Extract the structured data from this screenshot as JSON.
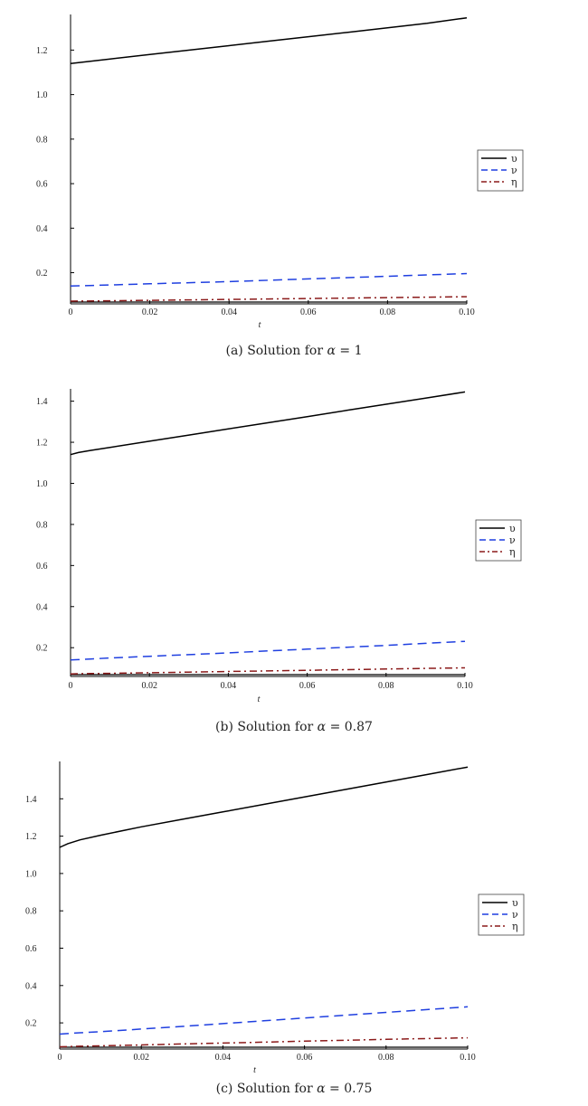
{
  "chart_data": [
    {
      "type": "line",
      "xlabel": "t",
      "ylabel": "",
      "xlim": [
        0,
        0.1
      ],
      "ylim": [
        0.06,
        1.36
      ],
      "xticks": [
        "0",
        "0.02",
        "0.04",
        "0.06",
        "0.08",
        "0.10"
      ],
      "xtick_values": [
        0,
        0.02,
        0.04,
        0.06,
        0.08,
        0.1
      ],
      "yticks": [
        "0.2",
        "0.4",
        "0.6",
        "0.8",
        "1.0",
        "1.2"
      ],
      "ytick_values": [
        0.2,
        0.4,
        0.6,
        0.8,
        1.0,
        1.2
      ],
      "grid": false,
      "legend": "right",
      "x": [
        0,
        0.01,
        0.02,
        0.03,
        0.04,
        0.05,
        0.06,
        0.07,
        0.08,
        0.09,
        0.1
      ],
      "series": [
        {
          "name": "υ",
          "color": "#000000",
          "dash": "solid",
          "values": [
            1.14,
            1.16,
            1.18,
            1.2,
            1.22,
            1.24,
            1.26,
            1.28,
            1.3,
            1.32,
            1.345
          ]
        },
        {
          "name": "ν",
          "color": "#1f3fe0",
          "dash": "dashed",
          "values": [
            0.14,
            0.145,
            0.15,
            0.155,
            0.16,
            0.166,
            0.172,
            0.178,
            0.184,
            0.19,
            0.196
          ]
        },
        {
          "name": "η",
          "color": "#8b1a1a",
          "dash": "dashdot",
          "values": [
            0.072,
            0.074,
            0.076,
            0.078,
            0.08,
            0.082,
            0.084,
            0.086,
            0.088,
            0.09,
            0.092
          ]
        }
      ],
      "baseline": {
        "color": "#000000",
        "value": 0.06
      }
    },
    {
      "type": "line",
      "xlabel": "t",
      "ylabel": "",
      "xlim": [
        0,
        0.1
      ],
      "ylim": [
        0.06,
        1.46
      ],
      "xticks": [
        "0",
        "0.02",
        "0.04",
        "0.06",
        "0.08",
        "0.10"
      ],
      "xtick_values": [
        0,
        0.02,
        0.04,
        0.06,
        0.08,
        0.1
      ],
      "yticks": [
        "0.2",
        "0.4",
        "0.6",
        "0.8",
        "1.0",
        "1.2",
        "1.4"
      ],
      "ytick_values": [
        0.2,
        0.4,
        0.6,
        0.8,
        1.0,
        1.2,
        1.4
      ],
      "grid": false,
      "legend": "right",
      "x": [
        0,
        0.002,
        0.005,
        0.01,
        0.02,
        0.03,
        0.04,
        0.05,
        0.06,
        0.07,
        0.08,
        0.09,
        0.1
      ],
      "series": [
        {
          "name": "υ",
          "color": "#000000",
          "dash": "solid",
          "values": [
            1.14,
            1.15,
            1.16,
            1.175,
            1.205,
            1.235,
            1.265,
            1.295,
            1.325,
            1.355,
            1.385,
            1.415,
            1.445
          ]
        },
        {
          "name": "ν",
          "color": "#1f3fe0",
          "dash": "dashed",
          "values": [
            0.14,
            0.142,
            0.145,
            0.15,
            0.158,
            0.166,
            0.175,
            0.184,
            0.193,
            0.202,
            0.211,
            0.221,
            0.231
          ]
        },
        {
          "name": "η",
          "color": "#8b1a1a",
          "dash": "dashdot",
          "values": [
            0.072,
            0.073,
            0.074,
            0.075,
            0.078,
            0.081,
            0.084,
            0.087,
            0.09,
            0.093,
            0.096,
            0.099,
            0.102
          ]
        }
      ],
      "baseline": {
        "color": "#000000",
        "value": 0.06
      }
    },
    {
      "type": "line",
      "xlabel": "t",
      "ylabel": "",
      "xlim": [
        0,
        0.1
      ],
      "ylim": [
        0.06,
        1.6
      ],
      "xticks": [
        "0",
        "0.02",
        "0.04",
        "0.06",
        "0.08",
        "0.10"
      ],
      "xtick_values": [
        0,
        0.02,
        0.04,
        0.06,
        0.08,
        0.1
      ],
      "yticks": [
        "0.2",
        "0.4",
        "0.6",
        "0.8",
        "1.0",
        "1.2",
        "1.4"
      ],
      "ytick_values": [
        0.2,
        0.4,
        0.6,
        0.8,
        1.0,
        1.2,
        1.4
      ],
      "grid": false,
      "legend": "right",
      "x": [
        0,
        0.002,
        0.005,
        0.01,
        0.02,
        0.03,
        0.04,
        0.05,
        0.06,
        0.07,
        0.08,
        0.09,
        0.1
      ],
      "series": [
        {
          "name": "υ",
          "color": "#000000",
          "dash": "solid",
          "values": [
            1.14,
            1.16,
            1.18,
            1.205,
            1.25,
            1.29,
            1.33,
            1.37,
            1.41,
            1.45,
            1.49,
            1.53,
            1.57
          ]
        },
        {
          "name": "ν",
          "color": "#1f3fe0",
          "dash": "dashed",
          "values": [
            0.14,
            0.143,
            0.147,
            0.153,
            0.167,
            0.181,
            0.196,
            0.211,
            0.226,
            0.241,
            0.256,
            0.271,
            0.286
          ]
        },
        {
          "name": "η",
          "color": "#8b1a1a",
          "dash": "dashdot",
          "values": [
            0.072,
            0.073,
            0.075,
            0.077,
            0.082,
            0.087,
            0.092,
            0.097,
            0.102,
            0.107,
            0.112,
            0.116,
            0.12
          ]
        }
      ],
      "baseline": {
        "color": "#000000",
        "value": 0.06
      }
    }
  ],
  "captions": [
    {
      "prefix": "(a) Solution for ",
      "symbol": "α",
      "suffix": " = 1"
    },
    {
      "prefix": "(b) Solution for ",
      "symbol": "α",
      "suffix": " = 0.87"
    },
    {
      "prefix": "(c) Solution for ",
      "symbol": "α",
      "suffix": " = 0.75"
    }
  ]
}
